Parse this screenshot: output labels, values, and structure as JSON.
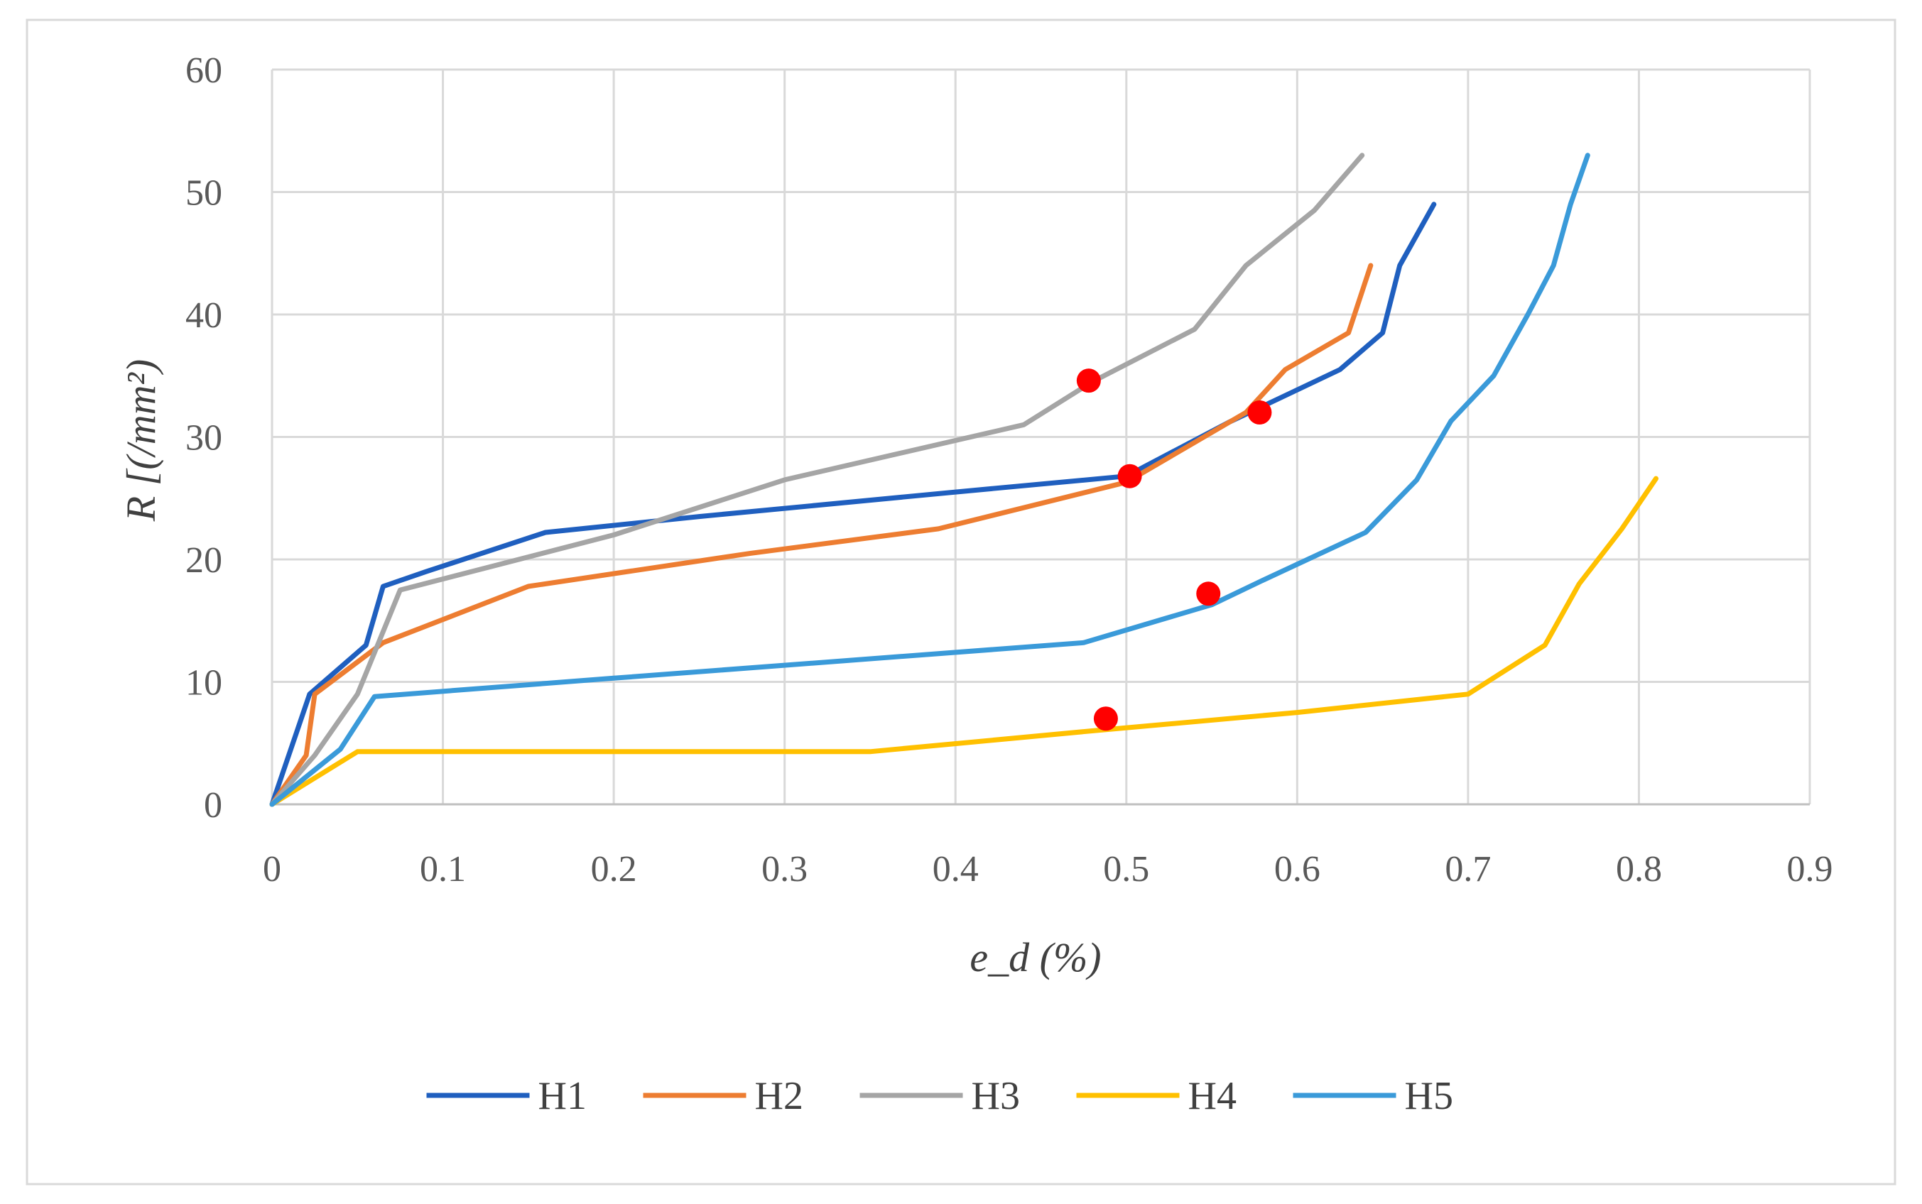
{
  "chart_data": {
    "type": "line",
    "title": "",
    "xlabel": "e_d (%)",
    "ylabel": "R [(/mm²)",
    "xlim": [
      0,
      0.9
    ],
    "ylim": [
      0,
      60
    ],
    "x_ticks": [
      "0",
      "0.1",
      "0.2",
      "0.3",
      "0.4",
      "0.5",
      "0.6",
      "0.7",
      "0.8",
      "0.9"
    ],
    "y_ticks": [
      "0",
      "10",
      "20",
      "30",
      "40",
      "50",
      "60"
    ],
    "grid": true,
    "legend_position": "bottom",
    "series": [
      {
        "name": "H1",
        "color": "#1F5FBF",
        "x": [
          0,
          0.022,
          0.055,
          0.065,
          0.09,
          0.16,
          0.25,
          0.4,
          0.5,
          0.56,
          0.625,
          0.65,
          0.66,
          0.68
        ],
        "y": [
          0,
          9,
          13,
          17.8,
          19,
          22.2,
          23.5,
          25.5,
          26.8,
          31.2,
          35.5,
          38.5,
          44,
          49
        ]
      },
      {
        "name": "H2",
        "color": "#ED7D31",
        "x": [
          0,
          0.02,
          0.025,
          0.065,
          0.15,
          0.28,
          0.39,
          0.5,
          0.57,
          0.593,
          0.63,
          0.643
        ],
        "y": [
          0,
          4,
          9,
          13.2,
          17.8,
          20.5,
          22.5,
          26.3,
          32,
          35.5,
          38.5,
          44
        ]
      },
      {
        "name": "H3",
        "color": "#A5A5A5",
        "x": [
          0,
          0.025,
          0.05,
          0.075,
          0.2,
          0.3,
          0.44,
          0.48,
          0.54,
          0.57,
          0.61,
          0.638
        ],
        "y": [
          0,
          4,
          9,
          17.5,
          22,
          26.5,
          31,
          34.5,
          38.8,
          44,
          48.5,
          53
        ]
      },
      {
        "name": "H4",
        "color": "#FFC000",
        "x": [
          0,
          0.05,
          0.2,
          0.35,
          0.48,
          0.6,
          0.7,
          0.745,
          0.765,
          0.79,
          0.81
        ],
        "y": [
          0,
          4.3,
          4.3,
          4.3,
          6,
          7.5,
          9,
          13,
          18,
          22.5,
          26.6
        ]
      },
      {
        "name": "H5",
        "color": "#3A9AD9",
        "x": [
          0,
          0.04,
          0.06,
          0.2,
          0.475,
          0.55,
          0.58,
          0.64,
          0.67,
          0.69,
          0.715,
          0.735,
          0.75,
          0.76,
          0.77
        ],
        "y": [
          0,
          4.5,
          8.8,
          10.3,
          13.2,
          16.3,
          18.3,
          22.2,
          26.5,
          31.3,
          35,
          40,
          44,
          49,
          53
        ]
      }
    ],
    "markers": [
      {
        "x": 0.478,
        "y": 34.6,
        "color": "#FF0000"
      },
      {
        "x": 0.578,
        "y": 32.0,
        "color": "#FF0000"
      },
      {
        "x": 0.502,
        "y": 26.8,
        "color": "#FF0000"
      },
      {
        "x": 0.548,
        "y": 17.2,
        "color": "#FF0000"
      },
      {
        "x": 0.488,
        "y": 7.0,
        "color": "#FF0000"
      }
    ]
  }
}
